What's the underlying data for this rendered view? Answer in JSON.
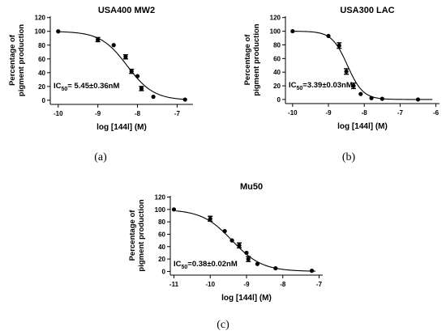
{
  "chart_data": [
    {
      "type": "scatter",
      "panel_label": "(a)",
      "title": "USA400 MW2",
      "xlabel": "log [144l] (M)",
      "ylabel": [
        "Percentage of",
        "pigment production"
      ],
      "annotation": {
        "prefix": "IC",
        "sub": "50",
        "suffix": "= 5.45±0.36nM"
      },
      "xlim": [
        -10.2,
        -6.6
      ],
      "ylim": [
        -6,
        122
      ],
      "xticks": [
        -10,
        -9,
        -8,
        -7
      ],
      "xtick_labels": [
        "-10",
        "-9",
        "-8",
        "-7"
      ],
      "yticks": [
        0,
        20,
        40,
        60,
        80,
        100,
        120
      ],
      "ytick_labels": [
        "0",
        "20",
        "40",
        "60",
        "80",
        "100",
        "120"
      ],
      "log_ic50": -8.26,
      "hill_slope": 1.3,
      "points": [
        {
          "x": -10,
          "y": 100,
          "err": 0
        },
        {
          "x": -9,
          "y": 88,
          "err": 3
        },
        {
          "x": -8.6,
          "y": 80,
          "err": 0
        },
        {
          "x": -8.3,
          "y": 63,
          "err": 3
        },
        {
          "x": -8.15,
          "y": 42,
          "err": 3
        },
        {
          "x": -8.0,
          "y": 35,
          "err": 0
        },
        {
          "x": -7.9,
          "y": 17,
          "err": 3
        },
        {
          "x": -7.6,
          "y": 5,
          "err": 0
        },
        {
          "x": -6.8,
          "y": 1,
          "err": 0
        }
      ]
    },
    {
      "type": "scatter",
      "panel_label": "(b)",
      "title": "USA300 LAC",
      "xlabel": "log [144l] (M)",
      "ylabel": [
        "Percentage of",
        "pigment production"
      ],
      "annotation": {
        "prefix": "IC",
        "sub": "50",
        "suffix": "=3.39±0.03nM"
      },
      "xlim": [
        -10.2,
        -5.9
      ],
      "ylim": [
        -6,
        122
      ],
      "xticks": [
        -10,
        -9,
        -8,
        -7,
        -6
      ],
      "xtick_labels": [
        "-10",
        "-9",
        "-8",
        "-7",
        "-6"
      ],
      "yticks": [
        0,
        20,
        40,
        60,
        80,
        100,
        120
      ],
      "ytick_labels": [
        "0",
        "20",
        "40",
        "60",
        "80",
        "100",
        "120"
      ],
      "log_ic50": -8.47,
      "hill_slope": 2.0,
      "points": [
        {
          "x": -10,
          "y": 100,
          "err": 0
        },
        {
          "x": -9,
          "y": 93,
          "err": 0
        },
        {
          "x": -8.7,
          "y": 79,
          "err": 4
        },
        {
          "x": -8.5,
          "y": 41,
          "err": 4
        },
        {
          "x": -8.3,
          "y": 20,
          "err": 4
        },
        {
          "x": -8.1,
          "y": 8,
          "err": 0
        },
        {
          "x": -7.8,
          "y": 2,
          "err": 0
        },
        {
          "x": -7.5,
          "y": 1,
          "err": 0
        },
        {
          "x": -6.5,
          "y": 0,
          "err": 0
        }
      ]
    },
    {
      "type": "scatter",
      "panel_label": "(c)",
      "title": "Mu50",
      "xlabel": "log [144l] (M)",
      "ylabel": [
        "Percentage of",
        "pigment production"
      ],
      "annotation": {
        "prefix": "IC",
        "sub": "50",
        "suffix": "=0.38±0.02nM"
      },
      "xlim": [
        -11.1,
        -6.9
      ],
      "ylim": [
        -6,
        122
      ],
      "xticks": [
        -11,
        -10,
        -9,
        -8,
        -7
      ],
      "xtick_labels": [
        "-11",
        "-10",
        "-9",
        "-8",
        "-7"
      ],
      "yticks": [
        0,
        20,
        40,
        60,
        80,
        100,
        120
      ],
      "ytick_labels": [
        "0",
        "20",
        "40",
        "60",
        "80",
        "100",
        "120"
      ],
      "log_ic50": -9.4,
      "hill_slope": 1.05,
      "points": [
        {
          "x": -11,
          "y": 100,
          "err": 0
        },
        {
          "x": -10,
          "y": 85,
          "err": 4
        },
        {
          "x": -9.6,
          "y": 65,
          "err": 0
        },
        {
          "x": -9.4,
          "y": 50,
          "err": 0
        },
        {
          "x": -9.2,
          "y": 42,
          "err": 4
        },
        {
          "x": -9.0,
          "y": 30,
          "err": 0
        },
        {
          "x": -8.95,
          "y": 20,
          "err": 4
        },
        {
          "x": -8.7,
          "y": 12,
          "err": 0
        },
        {
          "x": -8.2,
          "y": 5,
          "err": 0
        },
        {
          "x": -7.2,
          "y": 1,
          "err": 0
        }
      ]
    }
  ]
}
